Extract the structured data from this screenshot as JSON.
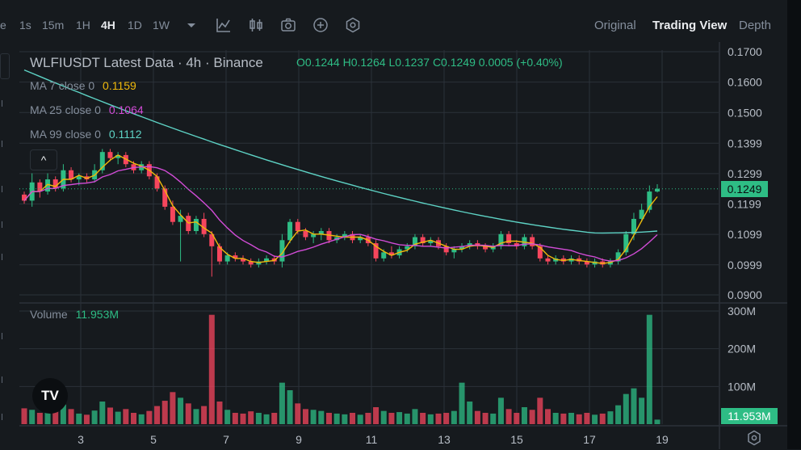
{
  "toolbar": {
    "cut_label": "e",
    "intervals": [
      "1s",
      "15m",
      "1H",
      "4H",
      "1D",
      "1W"
    ],
    "active_interval": "4H",
    "icons": [
      "chevron-down-icon",
      "indicator-icon",
      "candle-type-icon",
      "camera-icon",
      "add-icon",
      "settings-icon"
    ],
    "views": [
      "Original",
      "Trading View",
      "Depth"
    ],
    "active_view": "Trading View"
  },
  "legend": {
    "symbol_line": "WLFIUSDT Latest Data · 4h · Binance",
    "open": "O0.1244",
    "high": "H0.1264",
    "low": "L0.1237",
    "close": "C0.1249",
    "change": "0.0005 (+0.40%)",
    "ma7_label": "MA 7 close 0",
    "ma7_value": "0.1159",
    "ma25_label": "MA 25 close 0",
    "ma25_value": "0.1064",
    "ma99_label": "MA 99 close 0",
    "ma99_value": "0.1112",
    "volume_label": "Volume",
    "volume_value": "11.953M"
  },
  "colors": {
    "up": "#2ebd85",
    "down": "#f6465d",
    "ma7": "#f0b90b",
    "ma25": "#d24cd7",
    "ma99": "#5ed3c5",
    "grid": "#2b3139"
  },
  "price_tag": "0.1249",
  "volume_tag": "11.953M",
  "tv_logo": "TV",
  "collapse_icon": "^",
  "chart_data": {
    "type": "candlestick",
    "price_axis_ticks": [
      "0.1700",
      "0.1600",
      "0.1500",
      "0.1399",
      "0.1299",
      "0.1199",
      "0.1099",
      "0.0999",
      "0.0900"
    ],
    "price_axis_values": [
      0.17,
      0.16,
      0.15,
      0.1399,
      0.1299,
      0.1199,
      0.1099,
      0.0999,
      0.09
    ],
    "volume_axis_ticks": [
      "300M",
      "200M",
      "100M"
    ],
    "volume_axis_values": [
      300,
      200,
      100
    ],
    "x_ticks": [
      "3",
      "5",
      "7",
      "9",
      "11",
      "13",
      "15",
      "17",
      "19"
    ],
    "last_price": 0.1249,
    "candles": [
      [
        0.123,
        0.124,
        0.12,
        0.121,
        42
      ],
      [
        0.121,
        0.13,
        0.119,
        0.127,
        38
      ],
      [
        0.127,
        0.128,
        0.122,
        0.124,
        30
      ],
      [
        0.124,
        0.13,
        0.123,
        0.128,
        45
      ],
      [
        0.128,
        0.129,
        0.124,
        0.125,
        35
      ],
      [
        0.125,
        0.133,
        0.124,
        0.131,
        52
      ],
      [
        0.131,
        0.132,
        0.127,
        0.128,
        40
      ],
      [
        0.128,
        0.13,
        0.126,
        0.129,
        28
      ],
      [
        0.129,
        0.13,
        0.127,
        0.128,
        25
      ],
      [
        0.128,
        0.133,
        0.127,
        0.131,
        36
      ],
      [
        0.131,
        0.138,
        0.13,
        0.137,
        60
      ],
      [
        0.137,
        0.138,
        0.134,
        0.135,
        44
      ],
      [
        0.135,
        0.137,
        0.133,
        0.136,
        33
      ],
      [
        0.136,
        0.137,
        0.132,
        0.133,
        40
      ],
      [
        0.133,
        0.134,
        0.13,
        0.131,
        30
      ],
      [
        0.131,
        0.134,
        0.13,
        0.133,
        26
      ],
      [
        0.133,
        0.134,
        0.128,
        0.129,
        35
      ],
      [
        0.129,
        0.13,
        0.124,
        0.125,
        48
      ],
      [
        0.125,
        0.126,
        0.118,
        0.119,
        62
      ],
      [
        0.119,
        0.121,
        0.113,
        0.114,
        85
      ],
      [
        0.114,
        0.118,
        0.101,
        0.116,
        70
      ],
      [
        0.116,
        0.117,
        0.11,
        0.111,
        55
      ],
      [
        0.111,
        0.116,
        0.11,
        0.115,
        40
      ],
      [
        0.115,
        0.117,
        0.109,
        0.11,
        48
      ],
      [
        0.11,
        0.111,
        0.096,
        0.106,
        290
      ],
      [
        0.106,
        0.107,
        0.1,
        0.101,
        60
      ],
      [
        0.101,
        0.104,
        0.1,
        0.103,
        38
      ],
      [
        0.103,
        0.104,
        0.101,
        0.102,
        30
      ],
      [
        0.102,
        0.103,
        0.1,
        0.101,
        28
      ],
      [
        0.101,
        0.102,
        0.099,
        0.1,
        34
      ],
      [
        0.1,
        0.102,
        0.099,
        0.101,
        30
      ],
      [
        0.101,
        0.103,
        0.1,
        0.102,
        26
      ],
      [
        0.102,
        0.103,
        0.1,
        0.101,
        30
      ],
      [
        0.101,
        0.11,
        0.099,
        0.108,
        110
      ],
      [
        0.108,
        0.115,
        0.107,
        0.114,
        90
      ],
      [
        0.114,
        0.115,
        0.11,
        0.111,
        55
      ],
      [
        0.111,
        0.112,
        0.108,
        0.109,
        40
      ],
      [
        0.109,
        0.111,
        0.107,
        0.11,
        38
      ],
      [
        0.11,
        0.112,
        0.108,
        0.111,
        35
      ],
      [
        0.111,
        0.112,
        0.107,
        0.108,
        30
      ],
      [
        0.108,
        0.11,
        0.107,
        0.109,
        28
      ],
      [
        0.109,
        0.111,
        0.108,
        0.11,
        26
      ],
      [
        0.11,
        0.111,
        0.107,
        0.108,
        30
      ],
      [
        0.108,
        0.11,
        0.107,
        0.109,
        25
      ],
      [
        0.109,
        0.11,
        0.106,
        0.107,
        30
      ],
      [
        0.107,
        0.108,
        0.101,
        0.102,
        45
      ],
      [
        0.102,
        0.105,
        0.101,
        0.104,
        35
      ],
      [
        0.104,
        0.106,
        0.102,
        0.103,
        30
      ],
      [
        0.103,
        0.106,
        0.102,
        0.105,
        32
      ],
      [
        0.105,
        0.107,
        0.104,
        0.106,
        28
      ],
      [
        0.106,
        0.11,
        0.105,
        0.109,
        40
      ],
      [
        0.109,
        0.11,
        0.106,
        0.107,
        30
      ],
      [
        0.107,
        0.109,
        0.106,
        0.108,
        26
      ],
      [
        0.108,
        0.109,
        0.105,
        0.106,
        28
      ],
      [
        0.106,
        0.107,
        0.103,
        0.104,
        30
      ],
      [
        0.104,
        0.106,
        0.102,
        0.105,
        35
      ],
      [
        0.105,
        0.107,
        0.104,
        0.106,
        110
      ],
      [
        0.106,
        0.108,
        0.105,
        0.107,
        60
      ],
      [
        0.107,
        0.108,
        0.105,
        0.106,
        35
      ],
      [
        0.106,
        0.107,
        0.104,
        0.105,
        30
      ],
      [
        0.105,
        0.107,
        0.104,
        0.106,
        28
      ],
      [
        0.106,
        0.111,
        0.105,
        0.11,
        70
      ],
      [
        0.11,
        0.111,
        0.106,
        0.107,
        40
      ],
      [
        0.107,
        0.108,
        0.105,
        0.106,
        30
      ],
      [
        0.106,
        0.11,
        0.105,
        0.109,
        45
      ],
      [
        0.109,
        0.11,
        0.105,
        0.106,
        38
      ],
      [
        0.106,
        0.107,
        0.101,
        0.102,
        70
      ],
      [
        0.102,
        0.103,
        0.1,
        0.101,
        40
      ],
      [
        0.101,
        0.103,
        0.1,
        0.102,
        30
      ],
      [
        0.102,
        0.103,
        0.1,
        0.101,
        28
      ],
      [
        0.101,
        0.103,
        0.1,
        0.102,
        30
      ],
      [
        0.102,
        0.103,
        0.1,
        0.101,
        26
      ],
      [
        0.101,
        0.102,
        0.099,
        0.1,
        30
      ],
      [
        0.1,
        0.102,
        0.099,
        0.101,
        25
      ],
      [
        0.101,
        0.102,
        0.099,
        0.1,
        28
      ],
      [
        0.1,
        0.102,
        0.099,
        0.101,
        34
      ],
      [
        0.101,
        0.105,
        0.1,
        0.104,
        50
      ],
      [
        0.104,
        0.111,
        0.103,
        0.11,
        80
      ],
      [
        0.11,
        0.117,
        0.108,
        0.115,
        95
      ],
      [
        0.115,
        0.12,
        0.114,
        0.118,
        70
      ],
      [
        0.118,
        0.126,
        0.117,
        0.124,
        290
      ],
      [
        0.124,
        0.1264,
        0.1237,
        0.1249,
        12
      ]
    ]
  }
}
